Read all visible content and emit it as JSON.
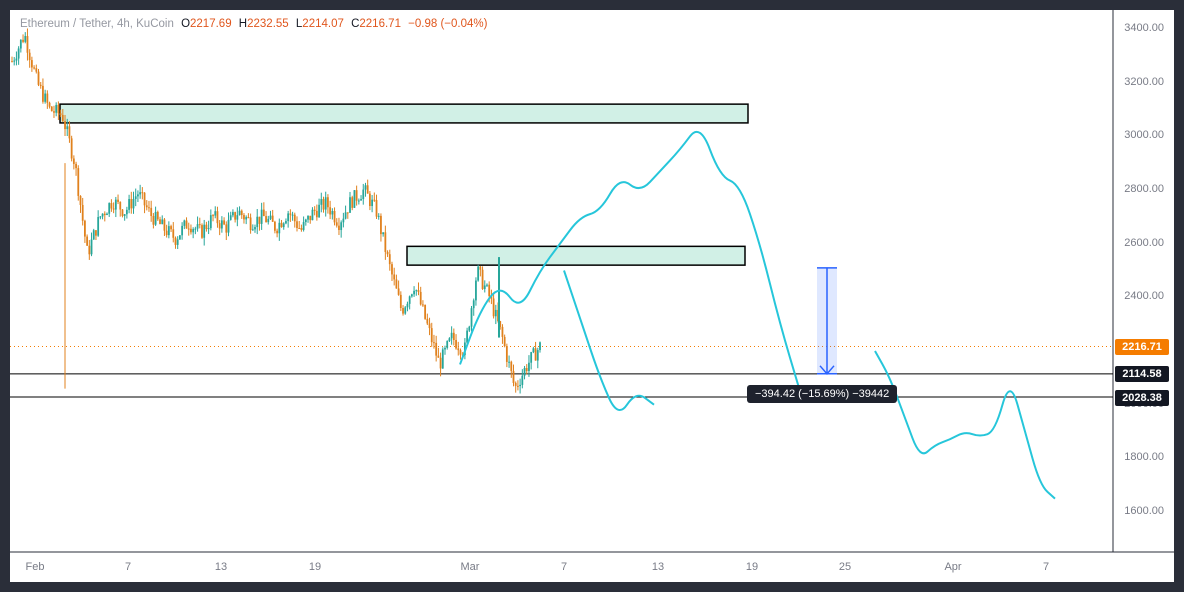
{
  "header": {
    "symbol": "Ethereum / Tether, 4h, KuCoin",
    "open_label": "O",
    "open": "2217.69",
    "high_label": "H",
    "high": "2232.55",
    "low_label": "L",
    "low": "2214.07",
    "close_label": "C",
    "close": "2216.71",
    "change": "−0.98 (−0.04%)"
  },
  "price_tags": {
    "last": "2216.71",
    "support_1": "2114.58",
    "support_2": "2028.38"
  },
  "measurement": {
    "label": "−394.42 (−15.69%) −39442"
  },
  "colors": {
    "up": "#089981",
    "down": "#f7525f",
    "candle_up": "#26a69a",
    "candle_down": "#e0811d",
    "projection": "#26c6da",
    "zone_fill": "#d1f0e6",
    "measure": "#2962ff",
    "last_price": "#f57c00"
  },
  "chart_data": {
    "type": "candlestick",
    "title": "",
    "timeframe": "4h",
    "y_axis": {
      "min": 1500,
      "max": 3450,
      "ticks": [
        "3400.00",
        "3200.00",
        "3000.00",
        "2800.00",
        "2600.00",
        "2400.00",
        "2200.00",
        "2000.00",
        "1800.00",
        "1600.00"
      ]
    },
    "x_axis": {
      "ticks": [
        "Feb",
        "7",
        "13",
        "19",
        "Mar",
        "7",
        "13",
        "19",
        "25",
        "Apr",
        "7"
      ]
    },
    "price_path": [
      [
        "Feb 1",
        3280
      ],
      [
        "Feb 1 12h",
        3380
      ],
      [
        "Feb 2",
        3200
      ],
      [
        "Feb 2 12h",
        3100
      ],
      [
        "Feb 3",
        3080
      ],
      [
        "Feb 3 12h",
        2900
      ],
      [
        "Feb 4",
        2560
      ],
      [
        "Feb 4 12h",
        2700
      ],
      [
        "Feb 5",
        2760
      ],
      [
        "Feb 6",
        2720
      ],
      [
        "Feb 7",
        2790
      ],
      [
        "Feb 8",
        2710
      ],
      [
        "Feb 9",
        2660
      ],
      [
        "Feb 10",
        2620
      ],
      [
        "Feb 11",
        2680
      ],
      [
        "Feb 12",
        2640
      ],
      [
        "Feb 13",
        2700
      ],
      [
        "Feb 14",
        2660
      ],
      [
        "Feb 15",
        2720
      ],
      [
        "Feb 16",
        2680
      ],
      [
        "Feb 17",
        2700
      ],
      [
        "Feb 18",
        2660
      ],
      [
        "Feb 19",
        2720
      ],
      [
        "Feb 20",
        2650
      ],
      [
        "Feb 21",
        2720
      ],
      [
        "Feb 22",
        2750
      ],
      [
        "Feb 23",
        2680
      ],
      [
        "Feb 24",
        2760
      ],
      [
        "Feb 25",
        2800
      ],
      [
        "Feb 25 12h",
        2720
      ],
      [
        "Feb 26",
        2520
      ],
      [
        "Feb 27",
        2350
      ],
      [
        "Feb 28",
        2450
      ],
      [
        "Feb 29",
        2300
      ],
      [
        "Mar 1",
        2150
      ],
      [
        "Mar 1 12h",
        2250
      ],
      [
        "Mar 2",
        2200
      ],
      [
        "Mar 2 12h",
        2500
      ],
      [
        "Mar 3",
        2400
      ],
      [
        "Mar 4",
        2250
      ],
      [
        "Mar 4 12h",
        2060
      ],
      [
        "Mar 5",
        2150
      ],
      [
        "Mar 6",
        2217
      ]
    ],
    "zones": [
      {
        "from": "Feb 3",
        "to": "Mar 18",
        "low": 3050,
        "high": 3120
      },
      {
        "from": "Feb 26",
        "to": "Mar 18",
        "low": 2520,
        "high": 2590
      }
    ],
    "horizontal_levels": [
      2216.71,
      2114.58,
      2028.38
    ],
    "projection_paths": [
      [
        [
          2,
          2150
        ],
        [
          3,
          2350
        ],
        [
          4,
          2450
        ],
        [
          5,
          2350
        ],
        [
          6,
          2500
        ],
        [
          7,
          2600
        ],
        [
          8,
          2700
        ],
        [
          9,
          2720
        ],
        [
          10,
          2850
        ],
        [
          11,
          2790
        ],
        [
          12,
          2870
        ],
        [
          13,
          2950
        ],
        [
          14,
          3050
        ],
        [
          15,
          2850
        ],
        [
          16,
          2820
        ],
        [
          17,
          2600
        ],
        [
          18,
          2300
        ],
        [
          19,
          2050
        ]
      ],
      [
        [
          6,
          2500
        ],
        [
          7,
          2300
        ],
        [
          8,
          2100
        ],
        [
          9,
          1950
        ],
        [
          10,
          2050
        ],
        [
          11,
          2000
        ]
      ],
      [
        [
          27,
          2200
        ],
        [
          28,
          2100
        ],
        [
          29,
          1950
        ],
        [
          30,
          1800
        ],
        [
          31,
          1850
        ],
        [
          32,
          1870
        ],
        [
          33,
          1900
        ],
        [
          34,
          1880
        ],
        [
          35,
          1900
        ],
        [
          36,
          2100
        ],
        [
          37,
          1900
        ],
        [
          38,
          1700
        ],
        [
          39,
          1650
        ]
      ]
    ],
    "measure_arrow": {
      "from": 2510,
      "to": 2115
    }
  }
}
